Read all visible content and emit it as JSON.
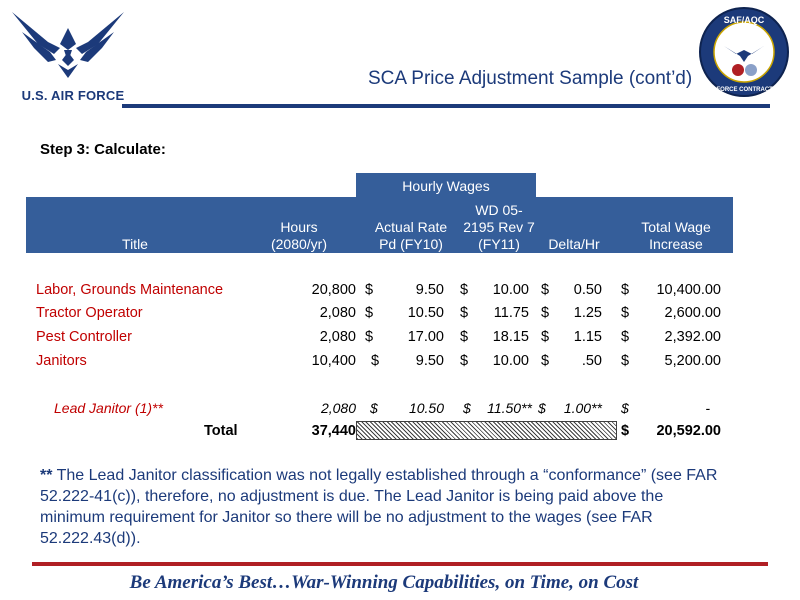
{
  "header": {
    "org_name": "U.S. AIR FORCE",
    "title": "SCA Price Adjustment Sample (cont’d)",
    "seal_top_text": "SAF/AQC",
    "seal_bottom_text": "AIR FORCE CONTRACTING"
  },
  "step_label": "Step 3:  Calculate:",
  "table": {
    "group_header": "Hourly Wages",
    "columns": {
      "title": "Title",
      "hours_1": "Hours",
      "hours_2": "(2080/yr)",
      "actual_1": "Actual Rate",
      "actual_2": "Pd (FY10)",
      "wd_1": "WD 05-",
      "wd_2": "2195 Rev 7",
      "wd_3": "(FY11)",
      "delta": "Delta/Hr",
      "total_1": "Total Wage",
      "total_2": "Increase"
    },
    "currency": "$",
    "rows": [
      {
        "title": "Labor, Grounds Maintenance",
        "hours": "20,800",
        "actual": "9.50",
        "wd": "10.00",
        "delta": "0.50",
        "total": "10,400.00"
      },
      {
        "title": "Tractor Operator",
        "hours": "2,080",
        "actual": "10.50",
        "wd": "11.75",
        "delta": "1.25",
        "total": "2,600.00"
      },
      {
        "title": "Pest Controller",
        "hours": "2,080",
        "actual": "17.00",
        "wd": "18.15",
        "delta": "1.15",
        "total": "2,392.00"
      },
      {
        "title": "Janitors",
        "hours": "10,400",
        "actual": "9.50",
        "wd": "10.00",
        "delta": ".50",
        "total": "5,200.00"
      }
    ],
    "lead_row": {
      "title": "Lead Janitor (1)**",
      "hours": "2,080",
      "actual": "10.50",
      "wd": "11.50**",
      "delta": "1.00**",
      "total": "-"
    },
    "total_row": {
      "label": "Total",
      "hours": "37,440",
      "total": "20,592.00"
    }
  },
  "note": {
    "marker": "**",
    "text": " The Lead Janitor classification was not legally established through a “conformance” (see FAR 52.222-41(c)), therefore, no adjustment is due.  The Lead Janitor is being paid above the minimum requirement for Janitor so there will be no adjustment to the wages (see FAR 52.222.43(d))."
  },
  "footer": {
    "slogan": "Be America’s Best…War-Winning Capabilities, on Time, on Cost"
  },
  "colors": {
    "navy": "#1c3a7a",
    "header_blue": "#355e9a",
    "row_label_red": "#c00000",
    "footer_rule_red": "#b01f24"
  }
}
